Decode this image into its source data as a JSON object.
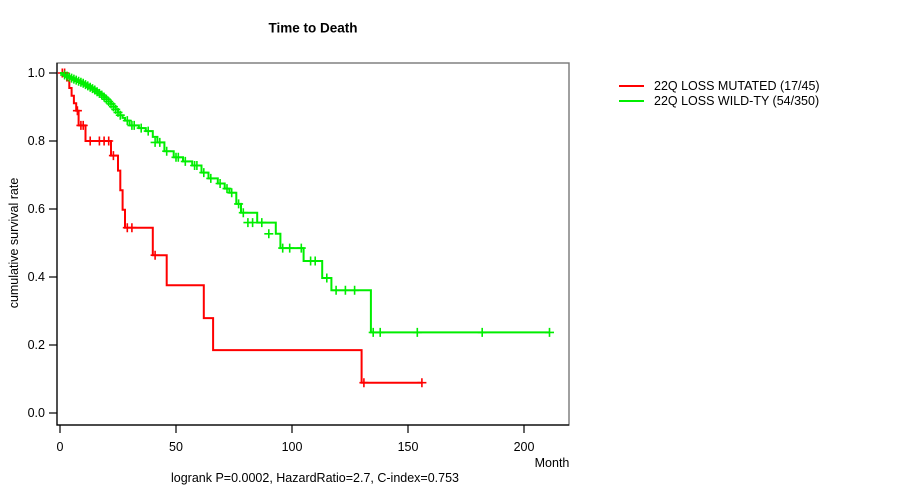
{
  "chart_data": {
    "type": "line",
    "subtype": "kaplan-meier-step-survival",
    "title": "Time to Death",
    "xlabel": "Month",
    "ylabel": "cumulative survival rate",
    "xlim": [
      0,
      219
    ],
    "ylim": [
      0,
      1.0
    ],
    "x_ticks": [
      0,
      50,
      100,
      150,
      200
    ],
    "y_ticks": [
      0.0,
      0.2,
      0.4,
      0.6,
      0.8,
      1.0
    ],
    "grid": false,
    "legend_position": "outside-right",
    "annotation": "logrank P=0.0002, HazardRatio=2.7, C-index=0.753",
    "colors": {
      "mutated": "#ff0000",
      "wildtype": "#00ee00",
      "box": "#777777",
      "axis": "#000000"
    },
    "series": [
      {
        "name": "22Q LOSS MUTATED (17/45)",
        "color": "#ff0000",
        "end_month": 156,
        "steps": [
          [
            0,
            1.0
          ],
          [
            3,
            0.978
          ],
          [
            4,
            0.956
          ],
          [
            5,
            0.933
          ],
          [
            6,
            0.911
          ],
          [
            7,
            0.889
          ],
          [
            8,
            0.846
          ],
          [
            11,
            0.8
          ],
          [
            22,
            0.757
          ],
          [
            25,
            0.713
          ],
          [
            26,
            0.655
          ],
          [
            27,
            0.598
          ],
          [
            28,
            0.545
          ],
          [
            40,
            0.464
          ],
          [
            46,
            0.376
          ],
          [
            62,
            0.279
          ],
          [
            66,
            0.185
          ],
          [
            130,
            0.089
          ]
        ],
        "censors": [
          [
            1,
            1.0
          ],
          [
            2,
            1.0
          ],
          [
            7.5,
            0.889
          ],
          [
            9,
            0.846
          ],
          [
            10,
            0.846
          ],
          [
            13,
            0.8
          ],
          [
            17,
            0.8
          ],
          [
            19,
            0.8
          ],
          [
            21,
            0.8
          ],
          [
            23,
            0.757
          ],
          [
            29,
            0.545
          ],
          [
            31,
            0.545
          ],
          [
            41,
            0.464
          ],
          [
            131,
            0.089
          ],
          [
            156,
            0.089
          ]
        ]
      },
      {
        "name": "22Q LOSS WILD-TY (54/350)",
        "color": "#00ee00",
        "end_month": 211,
        "steps": [
          [
            0,
            1.0
          ],
          [
            1,
            0.997
          ],
          [
            2,
            0.994
          ],
          [
            3,
            0.991
          ],
          [
            4,
            0.988
          ],
          [
            5,
            0.985
          ],
          [
            6,
            0.982
          ],
          [
            7,
            0.979
          ],
          [
            8,
            0.976
          ],
          [
            9,
            0.973
          ],
          [
            10,
            0.97
          ],
          [
            11,
            0.966
          ],
          [
            12,
            0.962
          ],
          [
            13,
            0.958
          ],
          [
            14,
            0.954
          ],
          [
            15,
            0.95
          ],
          [
            16,
            0.945
          ],
          [
            17,
            0.94
          ],
          [
            18,
            0.935
          ],
          [
            19,
            0.929
          ],
          [
            20,
            0.923
          ],
          [
            21,
            0.916
          ],
          [
            22,
            0.909
          ],
          [
            23,
            0.901
          ],
          [
            24,
            0.893
          ],
          [
            25,
            0.884
          ],
          [
            26,
            0.876
          ],
          [
            27,
            0.868
          ],
          [
            28,
            0.86
          ],
          [
            30,
            0.846
          ],
          [
            34,
            0.838
          ],
          [
            37,
            0.829
          ],
          [
            40,
            0.812
          ],
          [
            42,
            0.796
          ],
          [
            45,
            0.77
          ],
          [
            49,
            0.752
          ],
          [
            53,
            0.74
          ],
          [
            57,
            0.728
          ],
          [
            61,
            0.707
          ],
          [
            64,
            0.69
          ],
          [
            68,
            0.675
          ],
          [
            71,
            0.66
          ],
          [
            73,
            0.648
          ],
          [
            76,
            0.615
          ],
          [
            78,
            0.589
          ],
          [
            85,
            0.56
          ],
          [
            93,
            0.527
          ],
          [
            95,
            0.485
          ],
          [
            105,
            0.447
          ],
          [
            113,
            0.397
          ],
          [
            117,
            0.361
          ],
          [
            134,
            0.237
          ]
        ],
        "censors": [
          [
            2,
            0.994
          ],
          [
            3,
            0.991
          ],
          [
            4,
            0.988
          ],
          [
            5,
            0.985
          ],
          [
            6,
            0.982
          ],
          [
            7,
            0.979
          ],
          [
            8,
            0.976
          ],
          [
            9,
            0.973
          ],
          [
            10,
            0.97
          ],
          [
            11,
            0.966
          ],
          [
            12,
            0.962
          ],
          [
            13,
            0.958
          ],
          [
            14,
            0.954
          ],
          [
            15,
            0.95
          ],
          [
            16,
            0.945
          ],
          [
            17,
            0.94
          ],
          [
            18,
            0.935
          ],
          [
            19,
            0.929
          ],
          [
            20,
            0.923
          ],
          [
            21,
            0.916
          ],
          [
            22,
            0.909
          ],
          [
            23,
            0.901
          ],
          [
            24,
            0.893
          ],
          [
            25,
            0.884
          ],
          [
            26,
            0.876
          ],
          [
            29,
            0.86
          ],
          [
            31,
            0.846
          ],
          [
            32,
            0.846
          ],
          [
            35,
            0.838
          ],
          [
            38,
            0.829
          ],
          [
            41,
            0.796
          ],
          [
            43,
            0.796
          ],
          [
            46,
            0.77
          ],
          [
            50,
            0.752
          ],
          [
            51,
            0.752
          ],
          [
            54,
            0.74
          ],
          [
            58,
            0.728
          ],
          [
            59,
            0.728
          ],
          [
            62,
            0.707
          ],
          [
            65,
            0.69
          ],
          [
            69,
            0.675
          ],
          [
            72,
            0.66
          ],
          [
            74,
            0.648
          ],
          [
            77,
            0.615
          ],
          [
            79,
            0.589
          ],
          [
            81,
            0.56
          ],
          [
            83,
            0.56
          ],
          [
            87,
            0.56
          ],
          [
            90,
            0.527
          ],
          [
            96,
            0.485
          ],
          [
            99,
            0.485
          ],
          [
            104,
            0.485
          ],
          [
            108,
            0.447
          ],
          [
            110,
            0.447
          ],
          [
            115,
            0.397
          ],
          [
            119,
            0.361
          ],
          [
            123,
            0.361
          ],
          [
            127,
            0.361
          ],
          [
            135,
            0.237
          ],
          [
            138,
            0.237
          ],
          [
            154,
            0.237
          ],
          [
            182,
            0.237
          ],
          [
            211,
            0.237
          ]
        ]
      }
    ]
  }
}
